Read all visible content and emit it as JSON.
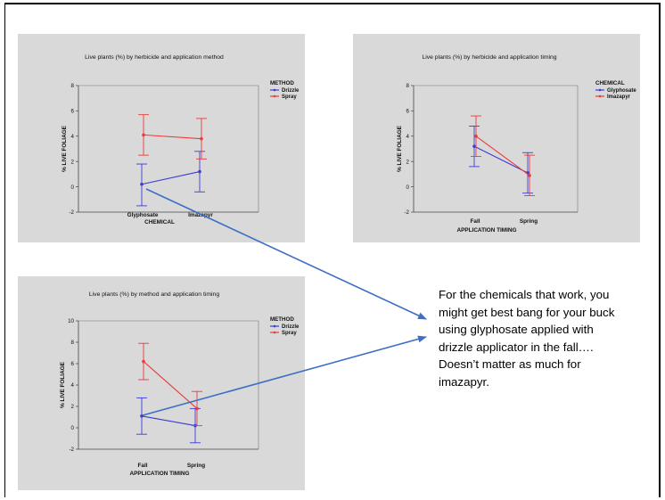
{
  "slide": {
    "callout": "For the chemicals that work, you might get best bang for your buck using glyphosate applied with drizzle applicator in the fall…. Doesn’t matter as much for imazapyr."
  },
  "chart_data": [
    {
      "type": "line",
      "title": "Live plants (%) by herbicide and application method",
      "xlabel": "CHEMICAL",
      "ylabel": "% LIVE FOLIAGE",
      "ylim": [
        -2,
        8
      ],
      "yticks": [
        -2,
        0,
        2,
        4,
        6,
        8
      ],
      "categories": [
        "Glyphosate",
        "Imazapyr"
      ],
      "legend_title": "METHOD",
      "legend_position": "top-right",
      "grid": false,
      "series": [
        {
          "name": "Drizzle",
          "color": "#3b3bd6",
          "values": [
            0.2,
            1.2
          ],
          "lower": [
            -1.5,
            -0.4
          ],
          "upper": [
            1.8,
            2.8
          ]
        },
        {
          "name": "Spray",
          "color": "#e83c3c",
          "values": [
            4.1,
            3.8
          ],
          "lower": [
            2.5,
            2.2
          ],
          "upper": [
            5.7,
            5.4
          ]
        }
      ]
    },
    {
      "type": "line",
      "title": "Live plants (%) by herbicide and application timing",
      "xlabel": "APPLICATION TIMING",
      "ylabel": "% LIVE FOLIAGE",
      "ylim": [
        -2,
        8
      ],
      "yticks": [
        -2,
        0,
        2,
        4,
        6,
        8
      ],
      "categories": [
        "Fall",
        "Spring"
      ],
      "legend_title": "CHEMICAL",
      "legend_position": "top-right",
      "grid": false,
      "series": [
        {
          "name": "Glyphosate",
          "color": "#3b3bd6",
          "values": [
            3.2,
            1.1
          ],
          "lower": [
            1.6,
            -0.5
          ],
          "upper": [
            4.8,
            2.7
          ]
        },
        {
          "name": "Imazapyr",
          "color": "#e83c3c",
          "values": [
            4.0,
            0.9
          ],
          "lower": [
            2.4,
            -0.7
          ],
          "upper": [
            5.6,
            2.5
          ]
        }
      ]
    },
    {
      "type": "line",
      "title": "Live plants (%) by method and application timing",
      "xlabel": "APPLICATION TIMING",
      "ylabel": "% LIVE FOLIAGE",
      "ylim": [
        -2,
        10
      ],
      "yticks": [
        -2,
        0,
        2,
        4,
        6,
        8,
        10
      ],
      "categories": [
        "Fall",
        "Spring"
      ],
      "legend_title": "METHOD",
      "legend_position": "top-right",
      "grid": false,
      "series": [
        {
          "name": "Drizzle",
          "color": "#3b3bd6",
          "values": [
            1.1,
            0.2
          ],
          "lower": [
            -0.6,
            -1.4
          ],
          "upper": [
            2.8,
            1.8
          ]
        },
        {
          "name": "Spray",
          "color": "#e83c3c",
          "values": [
            6.2,
            1.8
          ],
          "lower": [
            4.5,
            0.2
          ],
          "upper": [
            7.9,
            3.4
          ]
        }
      ]
    }
  ]
}
